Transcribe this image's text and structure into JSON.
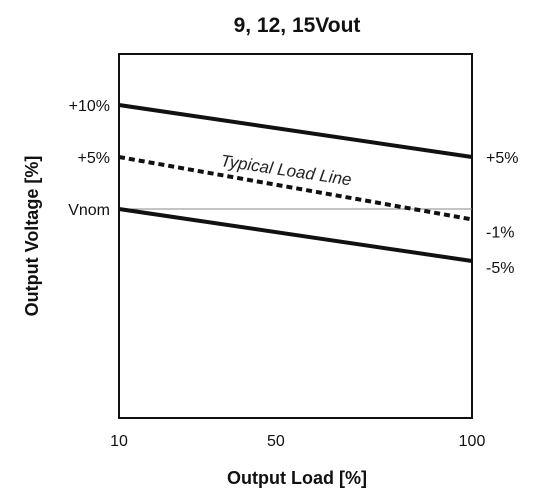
{
  "chart_data": {
    "type": "line",
    "title": "9, 12, 15Vout",
    "xlabel": "Output Load [%]",
    "ylabel": "Output Voltage [%]",
    "xticks": [
      "10",
      "50",
      "100"
    ],
    "x_tick_values": [
      10,
      50,
      100
    ],
    "xlim": [
      10,
      100
    ],
    "ylim": [
      -20,
      20
    ],
    "left_labels": [
      {
        "text": "+10%",
        "value": 10
      },
      {
        "text": "+5%",
        "value": 5
      },
      {
        "text": "Vnom",
        "value": 0
      }
    ],
    "right_labels": [
      {
        "text": "+5%",
        "value": 5
      },
      {
        "text": "-1%",
        "value": -1
      },
      {
        "text": "-5%",
        "value": -5
      }
    ],
    "series": [
      {
        "style": "solid",
        "x": [
          10,
          100
        ],
        "y": [
          10,
          5
        ]
      },
      {
        "name": "Typical Load Line",
        "style": "dashed",
        "x": [
          10,
          100
        ],
        "y": [
          5,
          -1
        ]
      },
      {
        "style": "solid",
        "x": [
          10,
          100
        ],
        "y": [
          0,
          -5
        ]
      }
    ],
    "reference_line": {
      "y": 0,
      "style": "thin-gray"
    },
    "annotation": "Typical Load Line",
    "grid": false,
    "legend": "none"
  }
}
